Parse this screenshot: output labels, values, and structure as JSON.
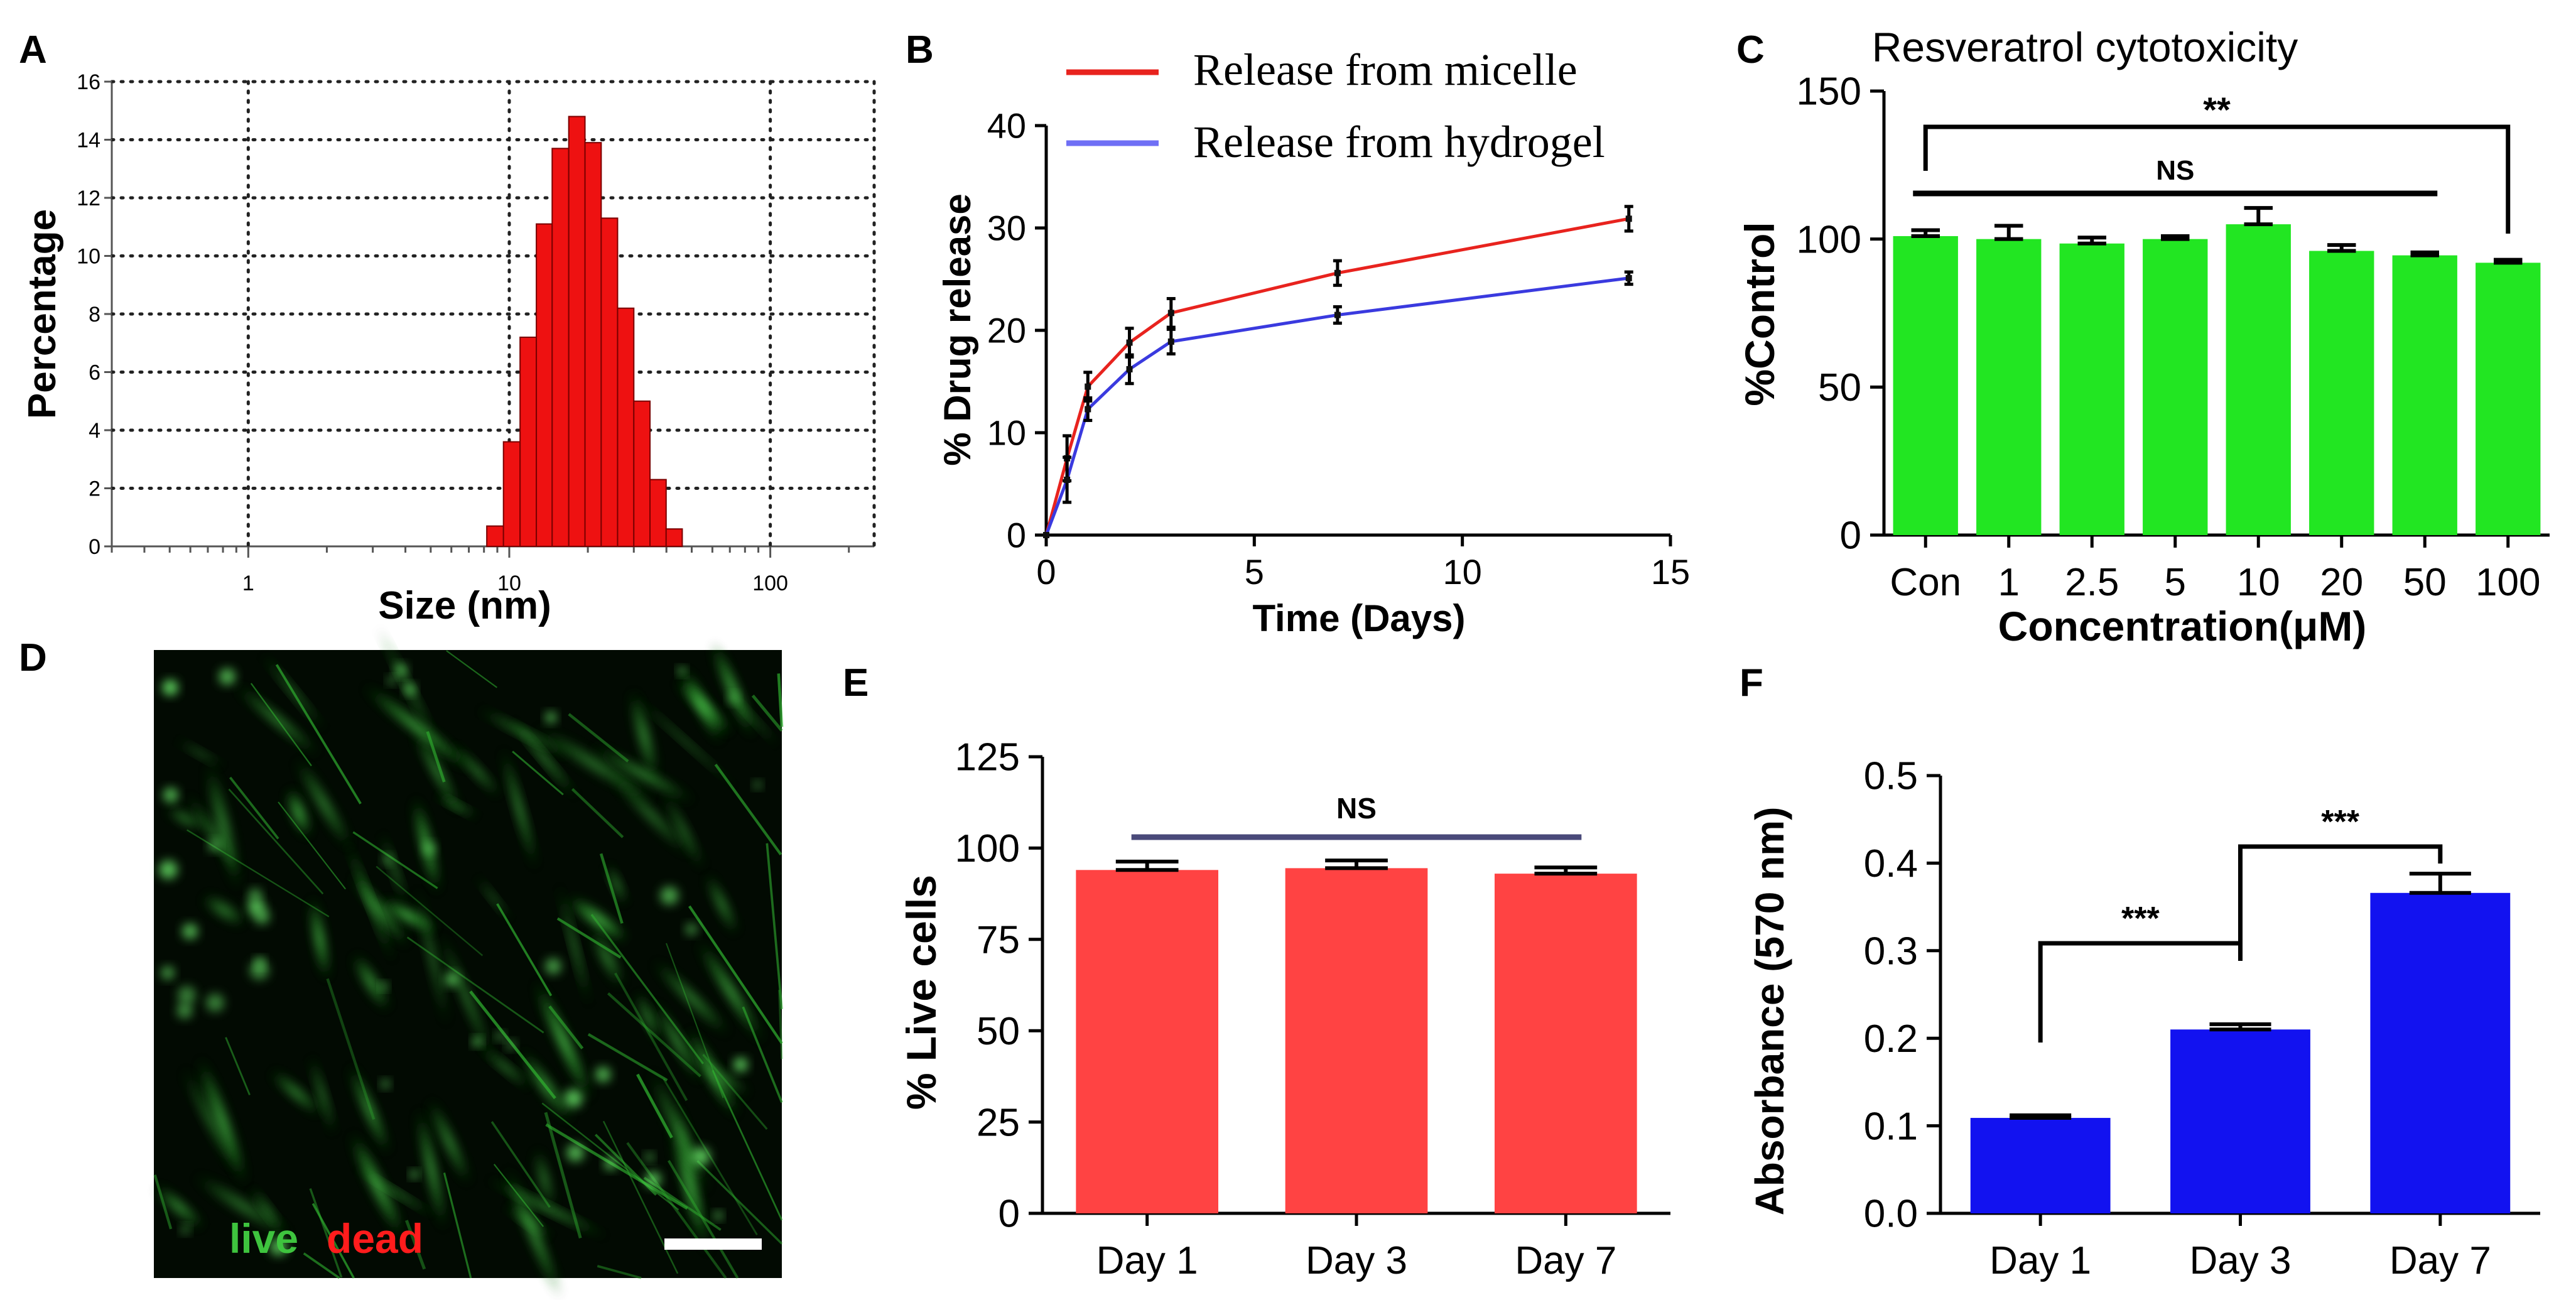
{
  "figure": {
    "panel_letters": [
      "A",
      "B",
      "C",
      "D",
      "E",
      "F"
    ],
    "micrograph": {
      "label_live": "live",
      "label_dead": "dead",
      "live_color": "#3ec43e",
      "dead_color": "#ff1c1c"
    }
  },
  "chart_data": [
    {
      "panel": "A",
      "type": "bar",
      "subtype": "histogram",
      "title": "",
      "xlabel": "Size (nm)",
      "ylabel": "Percentage",
      "xscale": "log",
      "xlim": [
        0.3,
        250
      ],
      "ylim": [
        0,
        16
      ],
      "xticks": [
        1,
        10,
        100
      ],
      "xtick_labels": [
        "1",
        "10",
        "100"
      ],
      "yticks": [
        0,
        2,
        4,
        6,
        8,
        10,
        12,
        14,
        16
      ],
      "grid": true,
      "color": "#ee1111",
      "bins": [
        {
          "x0": 8.2,
          "x1": 9.5,
          "value": 0.7
        },
        {
          "x0": 9.5,
          "x1": 11.0,
          "value": 3.6
        },
        {
          "x0": 11.0,
          "x1": 12.7,
          "value": 7.2
        },
        {
          "x0": 12.7,
          "x1": 14.6,
          "value": 11.1
        },
        {
          "x0": 14.6,
          "x1": 16.9,
          "value": 13.7
        },
        {
          "x0": 16.9,
          "x1": 19.5,
          "value": 14.8
        },
        {
          "x0": 19.5,
          "x1": 22.5,
          "value": 13.9
        },
        {
          "x0": 22.5,
          "x1": 26.0,
          "value": 11.3
        },
        {
          "x0": 26.0,
          "x1": 30.0,
          "value": 8.2
        },
        {
          "x0": 30.0,
          "x1": 34.6,
          "value": 5.0
        },
        {
          "x0": 34.6,
          "x1": 39.9,
          "value": 2.3
        },
        {
          "x0": 39.9,
          "x1": 46.0,
          "value": 0.6
        }
      ]
    },
    {
      "panel": "B",
      "type": "line",
      "title": "",
      "xlabel": "Time (Days)",
      "ylabel": "% Drug release",
      "xlim": [
        0,
        15
      ],
      "ylim": [
        0,
        40
      ],
      "xticks": [
        0,
        5,
        10,
        15
      ],
      "yticks": [
        0,
        10,
        20,
        30,
        40
      ],
      "grid": false,
      "legend": "top",
      "x": [
        0,
        0.5,
        1,
        2,
        3,
        7,
        14
      ],
      "series": [
        {
          "name": "Release from micelle",
          "color": "#e8231e",
          "values": [
            0,
            7.5,
            14.5,
            18.8,
            21.7,
            25.6,
            30.9
          ],
          "errors": [
            0,
            2.2,
            1.4,
            1.4,
            1.4,
            1.2,
            1.2
          ]
        },
        {
          "name": "Release from hydrogel",
          "color": "#3a3adf",
          "legend_color": "#6f6ff5",
          "values": [
            0,
            5.4,
            12.3,
            16.2,
            18.9,
            21.5,
            25.1
          ],
          "errors": [
            0,
            2.2,
            1.1,
            1.4,
            1.2,
            0.8,
            0.6
          ]
        }
      ]
    },
    {
      "panel": "C",
      "type": "bar",
      "title": "Resveratrol cytotoxicity",
      "xlabel": "Concentration(μM)",
      "ylabel": "%Control",
      "ylim": [
        0,
        150
      ],
      "yticks": [
        0,
        50,
        100,
        150
      ],
      "grid": false,
      "color": "#22e622",
      "categories": [
        "Con",
        "1",
        "2.5",
        "5",
        "10",
        "20",
        "50",
        "100"
      ],
      "values": [
        101,
        100,
        98.5,
        100,
        105,
        96,
        94.5,
        92
      ],
      "errors": [
        2,
        4.5,
        2,
        1,
        5.5,
        2,
        1,
        1
      ],
      "annotations": [
        {
          "text": "**",
          "from": "Con",
          "to": "100"
        },
        {
          "text": "NS",
          "from": "Con",
          "to": "50"
        }
      ]
    },
    {
      "panel": "E",
      "type": "bar",
      "title": "",
      "xlabel": "",
      "ylabel": "% Live cells",
      "ylim": [
        0,
        125
      ],
      "yticks": [
        0,
        25,
        50,
        75,
        100,
        125
      ],
      "grid": false,
      "color": "#ff4343",
      "categories": [
        "Day 1",
        "Day 3",
        "Day 7"
      ],
      "values": [
        94,
        94.5,
        93
      ],
      "errors": [
        2.3,
        2.1,
        1.7
      ],
      "annotations": [
        {
          "text": "NS",
          "from": "Day 1",
          "to": "Day 7",
          "level": 103,
          "color": "#4a4a7a"
        }
      ]
    },
    {
      "panel": "F",
      "type": "bar",
      "title": "",
      "xlabel": "",
      "ylabel": "Absorbance (570 nm)",
      "ylim": [
        0,
        0.5
      ],
      "yticks": [
        0,
        0.1,
        0.2,
        0.3,
        0.4,
        0.5
      ],
      "ytick_labels": [
        "0.0",
        "0.1",
        "0.2",
        "0.3",
        "0.4",
        "0.5"
      ],
      "grid": false,
      "color": "#1212f0",
      "categories": [
        "Day 1",
        "Day 3",
        "Day 7"
      ],
      "values": [
        0.109,
        0.21,
        0.366
      ],
      "errors": [
        0.003,
        0.006,
        0.022
      ],
      "annotations": [
        {
          "text": "***",
          "from": "Day 1",
          "to": "Day 3"
        },
        {
          "text": "***",
          "from": "Day 3",
          "to": "Day 7"
        }
      ]
    }
  ]
}
